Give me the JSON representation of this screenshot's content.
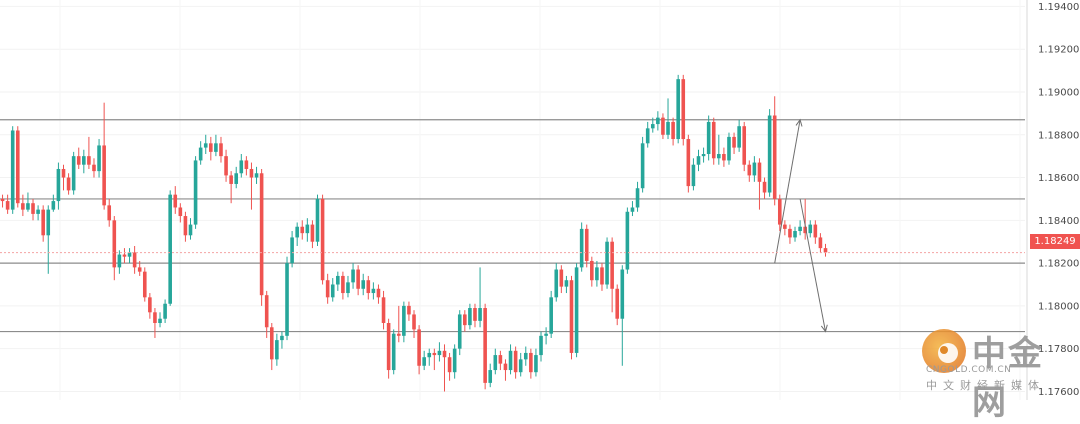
{
  "chart_data": {
    "type": "candlestick",
    "y_axis_ticks": [
      "1.17600",
      "1.17800",
      "1.18000",
      "1.18200",
      "1.18400",
      "1.18600",
      "1.18800",
      "1.19000",
      "1.19200",
      "1.19400"
    ],
    "ylim": [
      1.1756,
      1.1943
    ],
    "last_price_label": "1.18249",
    "last_price": 1.18249,
    "colors": {
      "up": "#26a69a",
      "down": "#ef5350",
      "horizontal_line": "#8c8c8c",
      "arrow": "#6e6e6e"
    },
    "horizontal_levels": [
      1.1887,
      1.185,
      1.182,
      1.1788
    ],
    "projection_arrows": [
      {
        "from_index": 152,
        "from": 1.182,
        "to_index": 157,
        "to": 1.1887
      },
      {
        "from_index": 157,
        "from": 1.185,
        "to_index": 162,
        "to": 1.1788
      }
    ],
    "candles": [
      [
        1.185,
        1.1849,
        1.1852,
        1.1846
      ],
      [
        1.1849,
        1.1845,
        1.1852,
        1.1843
      ],
      [
        1.1845,
        1.1882,
        1.1884,
        1.1843
      ],
      [
        1.1882,
        1.1848,
        1.1884,
        1.1846
      ],
      [
        1.1848,
        1.1845,
        1.1852,
        1.1842
      ],
      [
        1.1845,
        1.1848,
        1.1853,
        1.1844
      ],
      [
        1.1848,
        1.1843,
        1.185,
        1.184
      ],
      [
        1.1843,
        1.1845,
        1.1847,
        1.184
      ],
      [
        1.1845,
        1.1833,
        1.1847,
        1.183
      ],
      [
        1.1833,
        1.1845,
        1.1847,
        1.1815
      ],
      [
        1.1845,
        1.1849,
        1.1852,
        1.1844
      ],
      [
        1.1849,
        1.1864,
        1.1867,
        1.1845
      ],
      [
        1.1864,
        1.186,
        1.1866,
        1.1854
      ],
      [
        1.186,
        1.1854,
        1.1862,
        1.1852
      ],
      [
        1.1854,
        1.187,
        1.1872,
        1.1852
      ],
      [
        1.187,
        1.1866,
        1.1874,
        1.1864
      ],
      [
        1.1866,
        1.187,
        1.1873,
        1.1862
      ],
      [
        1.187,
        1.1866,
        1.1879,
        1.1864
      ],
      [
        1.1866,
        1.1863,
        1.1869,
        1.186
      ],
      [
        1.1863,
        1.1875,
        1.1878,
        1.186
      ],
      [
        1.1875,
        1.1847,
        1.1895,
        1.1845
      ],
      [
        1.1847,
        1.184,
        1.185,
        1.1837
      ],
      [
        1.184,
        1.1818,
        1.1842,
        1.1812
      ],
      [
        1.1818,
        1.1824,
        1.1826,
        1.1815
      ],
      [
        1.1824,
        1.1823,
        1.1827,
        1.182
      ],
      [
        1.1823,
        1.1825,
        1.1827,
        1.182
      ],
      [
        1.1825,
        1.1818,
        1.1828,
        1.1815
      ],
      [
        1.1818,
        1.1816,
        1.1821,
        1.1814
      ],
      [
        1.1816,
        1.1804,
        1.1818,
        1.1802
      ],
      [
        1.1804,
        1.1797,
        1.1806,
        1.1794
      ],
      [
        1.1797,
        1.1792,
        1.1799,
        1.1785
      ],
      [
        1.1792,
        1.1794,
        1.1797,
        1.179
      ],
      [
        1.1794,
        1.1801,
        1.1803,
        1.1792
      ],
      [
        1.1801,
        1.1852,
        1.1854,
        1.18
      ],
      [
        1.1852,
        1.1846,
        1.1856,
        1.1843
      ],
      [
        1.1846,
        1.1842,
        1.1848,
        1.1839
      ],
      [
        1.1842,
        1.1833,
        1.1844,
        1.183
      ],
      [
        1.1833,
        1.1838,
        1.1841,
        1.1831
      ],
      [
        1.1838,
        1.1868,
        1.187,
        1.1836
      ],
      [
        1.1868,
        1.1874,
        1.1877,
        1.1866
      ],
      [
        1.1874,
        1.1876,
        1.188,
        1.1871
      ],
      [
        1.1876,
        1.1872,
        1.1879,
        1.1868
      ],
      [
        1.1872,
        1.1876,
        1.188,
        1.187
      ],
      [
        1.1876,
        1.187,
        1.1879,
        1.1867
      ],
      [
        1.187,
        1.1861,
        1.1873,
        1.1858
      ],
      [
        1.1861,
        1.1857,
        1.1863,
        1.1848
      ],
      [
        1.1857,
        1.1862,
        1.1865,
        1.1855
      ],
      [
        1.1862,
        1.1868,
        1.1871,
        1.186
      ],
      [
        1.1868,
        1.1864,
        1.187,
        1.1861
      ],
      [
        1.1864,
        1.186,
        1.1867,
        1.1845
      ],
      [
        1.186,
        1.1862,
        1.1865,
        1.1857
      ],
      [
        1.1862,
        1.1805,
        1.1864,
        1.18
      ],
      [
        1.1805,
        1.179,
        1.1807,
        1.1785
      ],
      [
        1.179,
        1.1775,
        1.1792,
        1.177
      ],
      [
        1.1775,
        1.1784,
        1.1787,
        1.1772
      ],
      [
        1.1784,
        1.1786,
        1.1788,
        1.178
      ],
      [
        1.1786,
        1.182,
        1.1823,
        1.1784
      ],
      [
        1.182,
        1.1832,
        1.1835,
        1.1818
      ],
      [
        1.1832,
        1.1837,
        1.1839,
        1.1828
      ],
      [
        1.1837,
        1.1834,
        1.184,
        1.1831
      ],
      [
        1.1834,
        1.1838,
        1.1841,
        1.183
      ],
      [
        1.1838,
        1.183,
        1.184,
        1.1827
      ],
      [
        1.183,
        1.185,
        1.1852,
        1.1828
      ],
      [
        1.185,
        1.1812,
        1.1852,
        1.181
      ],
      [
        1.1812,
        1.1804,
        1.1815,
        1.1801
      ],
      [
        1.1804,
        1.181,
        1.1813,
        1.1802
      ],
      [
        1.181,
        1.1814,
        1.1816,
        1.1807
      ],
      [
        1.1814,
        1.1806,
        1.1816,
        1.1803
      ],
      [
        1.1806,
        1.1811,
        1.1814,
        1.1804
      ],
      [
        1.1811,
        1.1817,
        1.182,
        1.1808
      ],
      [
        1.1817,
        1.1808,
        1.1819,
        1.1805
      ],
      [
        1.1808,
        1.1812,
        1.1815,
        1.1805
      ],
      [
        1.1812,
        1.1806,
        1.1814,
        1.1803
      ],
      [
        1.1806,
        1.1808,
        1.1811,
        1.1803
      ],
      [
        1.1808,
        1.1804,
        1.181,
        1.1801
      ],
      [
        1.1804,
        1.1792,
        1.1807,
        1.1789
      ],
      [
        1.1792,
        1.177,
        1.1794,
        1.1766
      ],
      [
        1.177,
        1.1787,
        1.1789,
        1.1768
      ],
      [
        1.1787,
        1.1786,
        1.18,
        1.1783
      ],
      [
        1.1786,
        1.18,
        1.1802,
        1.1783
      ],
      [
        1.18,
        1.1796,
        1.1802,
        1.1793
      ],
      [
        1.1796,
        1.1789,
        1.1798,
        1.1785
      ],
      [
        1.1789,
        1.1772,
        1.1791,
        1.1768
      ],
      [
        1.1772,
        1.1776,
        1.1779,
        1.177
      ],
      [
        1.1776,
        1.1778,
        1.178,
        1.1772
      ],
      [
        1.1778,
        1.1777,
        1.178,
        1.177
      ],
      [
        1.1777,
        1.1779,
        1.1783,
        1.1774
      ],
      [
        1.1779,
        1.1776,
        1.1782,
        1.176
      ],
      [
        1.1776,
        1.1769,
        1.1778,
        1.1765
      ],
      [
        1.1769,
        1.178,
        1.1782,
        1.1766
      ],
      [
        1.178,
        1.1796,
        1.1798,
        1.1777
      ],
      [
        1.1796,
        1.1791,
        1.1798,
        1.1788
      ],
      [
        1.1791,
        1.1799,
        1.1801,
        1.1789
      ],
      [
        1.1799,
        1.1793,
        1.1801,
        1.179
      ],
      [
        1.1793,
        1.1799,
        1.1818,
        1.179
      ],
      [
        1.1799,
        1.1764,
        1.1801,
        1.1761
      ],
      [
        1.1764,
        1.177,
        1.1773,
        1.1762
      ],
      [
        1.177,
        1.1777,
        1.178,
        1.1768
      ],
      [
        1.1777,
        1.1773,
        1.1779,
        1.177
      ],
      [
        1.1773,
        1.177,
        1.1775,
        1.1765
      ],
      [
        1.177,
        1.1779,
        1.1782,
        1.1768
      ],
      [
        1.1779,
        1.1769,
        1.1781,
        1.1766
      ],
      [
        1.1769,
        1.1775,
        1.1778,
        1.1767
      ],
      [
        1.1775,
        1.1778,
        1.1781,
        1.1772
      ],
      [
        1.1778,
        1.1769,
        1.178,
        1.1766
      ],
      [
        1.1769,
        1.1777,
        1.178,
        1.1767
      ],
      [
        1.1777,
        1.1786,
        1.1788,
        1.1774
      ],
      [
        1.1786,
        1.1787,
        1.179,
        1.1782
      ],
      [
        1.1787,
        1.1804,
        1.1807,
        1.1785
      ],
      [
        1.1804,
        1.1817,
        1.182,
        1.1802
      ],
      [
        1.1817,
        1.1809,
        1.1819,
        1.1806
      ],
      [
        1.1809,
        1.1812,
        1.1814,
        1.1806
      ],
      [
        1.1812,
        1.1778,
        1.1814,
        1.1775
      ],
      [
        1.1778,
        1.1818,
        1.182,
        1.1776
      ],
      [
        1.1818,
        1.1836,
        1.1839,
        1.1816
      ],
      [
        1.1836,
        1.1821,
        1.1838,
        1.1818
      ],
      [
        1.1821,
        1.1812,
        1.1823,
        1.1809
      ],
      [
        1.1812,
        1.1818,
        1.1821,
        1.1809
      ],
      [
        1.1818,
        1.181,
        1.182,
        1.1807
      ],
      [
        1.181,
        1.183,
        1.1832,
        1.1808
      ],
      [
        1.183,
        1.1808,
        1.1832,
        1.1797
      ],
      [
        1.1808,
        1.1794,
        1.181,
        1.1791
      ],
      [
        1.1794,
        1.1817,
        1.1819,
        1.1772
      ],
      [
        1.1817,
        1.1844,
        1.1846,
        1.1815
      ],
      [
        1.1844,
        1.1846,
        1.1849,
        1.1842
      ],
      [
        1.1846,
        1.1855,
        1.1858,
        1.1844
      ],
      [
        1.1855,
        1.1876,
        1.1879,
        1.1853
      ],
      [
        1.1876,
        1.1883,
        1.1886,
        1.1874
      ],
      [
        1.1883,
        1.1885,
        1.1888,
        1.1881
      ],
      [
        1.1885,
        1.1888,
        1.1891,
        1.1882
      ],
      [
        1.1888,
        1.188,
        1.189,
        1.1878
      ],
      [
        1.188,
        1.1886,
        1.1897,
        1.1878
      ],
      [
        1.1886,
        1.1878,
        1.1888,
        1.1875
      ],
      [
        1.1878,
        1.1906,
        1.1908,
        1.1876
      ],
      [
        1.1906,
        1.1878,
        1.1908,
        1.1875
      ],
      [
        1.1878,
        1.1856,
        1.188,
        1.1853
      ],
      [
        1.1856,
        1.1866,
        1.1869,
        1.1854
      ],
      [
        1.1866,
        1.187,
        1.1873,
        1.1863
      ],
      [
        1.187,
        1.1871,
        1.1874,
        1.1867
      ],
      [
        1.1871,
        1.1886,
        1.1889,
        1.1868
      ],
      [
        1.1886,
        1.1869,
        1.1888,
        1.1866
      ],
      [
        1.1869,
        1.1871,
        1.188,
        1.1866
      ],
      [
        1.1871,
        1.1868,
        1.1874,
        1.1865
      ],
      [
        1.1868,
        1.1879,
        1.1881,
        1.1866
      ],
      [
        1.1879,
        1.1874,
        1.1881,
        1.1871
      ],
      [
        1.1874,
        1.1884,
        1.1887,
        1.1872
      ],
      [
        1.1884,
        1.1866,
        1.1886,
        1.1863
      ],
      [
        1.1866,
        1.1861,
        1.1868,
        1.1858
      ],
      [
        1.1861,
        1.1867,
        1.187,
        1.1858
      ],
      [
        1.1867,
        1.1858,
        1.1869,
        1.1845
      ],
      [
        1.1858,
        1.1853,
        1.186,
        1.185
      ],
      [
        1.1853,
        1.1889,
        1.1892,
        1.1851
      ],
      [
        1.1889,
        1.185,
        1.1898,
        1.1847
      ],
      [
        1.185,
        1.1838,
        1.1852,
        1.1835
      ],
      [
        1.1838,
        1.1836,
        1.184,
        1.1833
      ],
      [
        1.1836,
        1.1832,
        1.1838,
        1.1829
      ],
      [
        1.1832,
        1.1835,
        1.1837,
        1.183
      ],
      [
        1.1835,
        1.1837,
        1.184,
        1.1833
      ],
      [
        1.1837,
        1.1834,
        1.185,
        1.1831
      ],
      [
        1.1834,
        1.1838,
        1.184,
        1.1832
      ],
      [
        1.1838,
        1.1832,
        1.184,
        1.1829
      ],
      [
        1.1832,
        1.1827,
        1.1834,
        1.1825
      ],
      [
        1.1827,
        1.1825,
        1.1829,
        1.1823
      ]
    ]
  },
  "watermark": {
    "title": "中金网",
    "domain": "CNGOLD.COM.CN",
    "tagline": "中文财经新媒体"
  }
}
